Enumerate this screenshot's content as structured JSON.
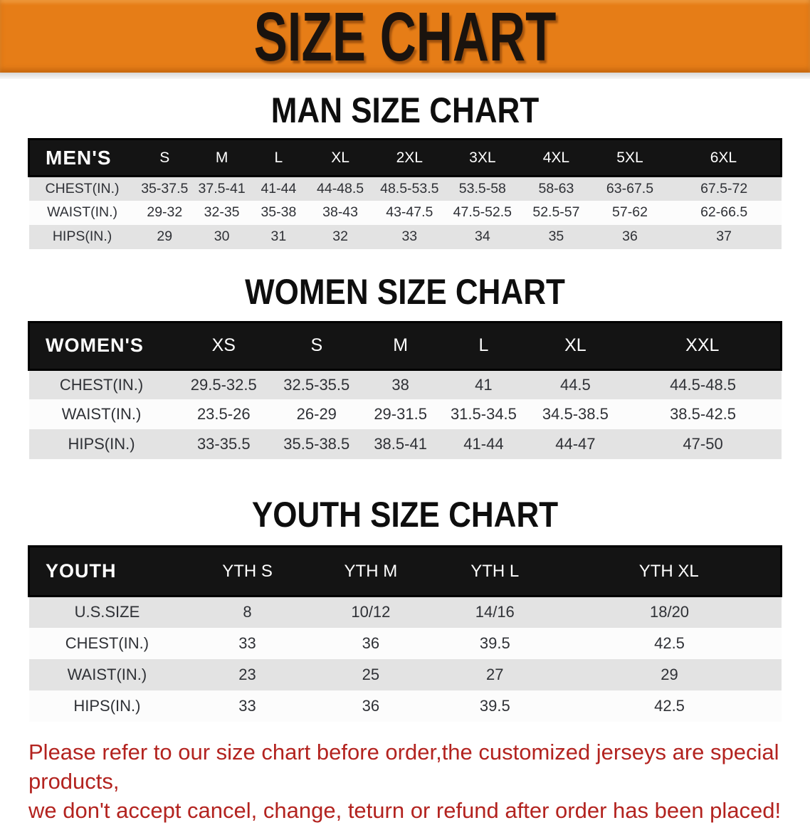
{
  "banner": {
    "title": "SIZE CHART",
    "bg_color": "#E67D17",
    "text_color": "#1A130E"
  },
  "colors": {
    "table_header_bar": "#141414",
    "table_header_text": "#FFFFFF",
    "row_stripe_gray": "#E3E3E3",
    "row_stripe_white": "#FCFCFC",
    "disclaimer_red": "#B3231F"
  },
  "sections": [
    {
      "id": "men",
      "heading": "MAN SIZE CHART",
      "header_label": "MEN'S",
      "columns": [
        "S",
        "M",
        "L",
        "XL",
        "2XL",
        "3XL",
        "4XL",
        "5XL",
        "6XL"
      ],
      "rows": [
        {
          "label": "CHEST(IN.)",
          "values": [
            "35-37.5",
            "37.5-41",
            "41-44",
            "44-48.5",
            "48.5-53.5",
            "53.5-58",
            "58-63",
            "63-67.5",
            "67.5-72"
          ]
        },
        {
          "label": "WAIST(IN.)",
          "values": [
            "29-32",
            "32-35",
            "35-38",
            "38-43",
            "43-47.5",
            "47.5-52.5",
            "52.5-57",
            "57-62",
            "62-66.5"
          ]
        },
        {
          "label": "HIPS(IN.)",
          "values": [
            "29",
            "30",
            "31",
            "32",
            "33",
            "34",
            "35",
            "36",
            "37"
          ]
        }
      ]
    },
    {
      "id": "women",
      "heading": "WOMEN SIZE CHART",
      "header_label": "WOMEN'S",
      "columns": [
        "XS",
        "S",
        "M",
        "L",
        "XL",
        "XXL"
      ],
      "rows": [
        {
          "label": "CHEST(IN.)",
          "values": [
            "29.5-32.5",
            "32.5-35.5",
            "38",
            "41",
            "44.5",
            "44.5-48.5"
          ]
        },
        {
          "label": "WAIST(IN.)",
          "values": [
            "23.5-26",
            "26-29",
            "29-31.5",
            "31.5-34.5",
            "34.5-38.5",
            "38.5-42.5"
          ]
        },
        {
          "label": "HIPS(IN.)",
          "values": [
            "33-35.5",
            "35.5-38.5",
            "38.5-41",
            "41-44",
            "44-47",
            "47-50"
          ]
        }
      ]
    },
    {
      "id": "youth",
      "heading": "YOUTH SIZE CHART",
      "header_label": "YOUTH",
      "columns": [
        "YTH S",
        "YTH M",
        "YTH L",
        "YTH XL"
      ],
      "rows": [
        {
          "label": "U.S.SIZE",
          "values": [
            "8",
            "10/12",
            "14/16",
            "18/20"
          ]
        },
        {
          "label": "CHEST(IN.)",
          "values": [
            "33",
            "36",
            "39.5",
            "42.5"
          ]
        },
        {
          "label": "WAIST(IN.)",
          "values": [
            "23",
            "25",
            "27",
            "29"
          ]
        },
        {
          "label": "HIPS(IN.)",
          "values": [
            "33",
            "36",
            "39.5",
            "42.5"
          ]
        }
      ]
    }
  ],
  "disclaimer": {
    "line1": "Please refer to our size chart before order,the customized jerseys are special products,",
    "line2": "we don't accept cancel, change, teturn or refund after order has been placed!"
  }
}
